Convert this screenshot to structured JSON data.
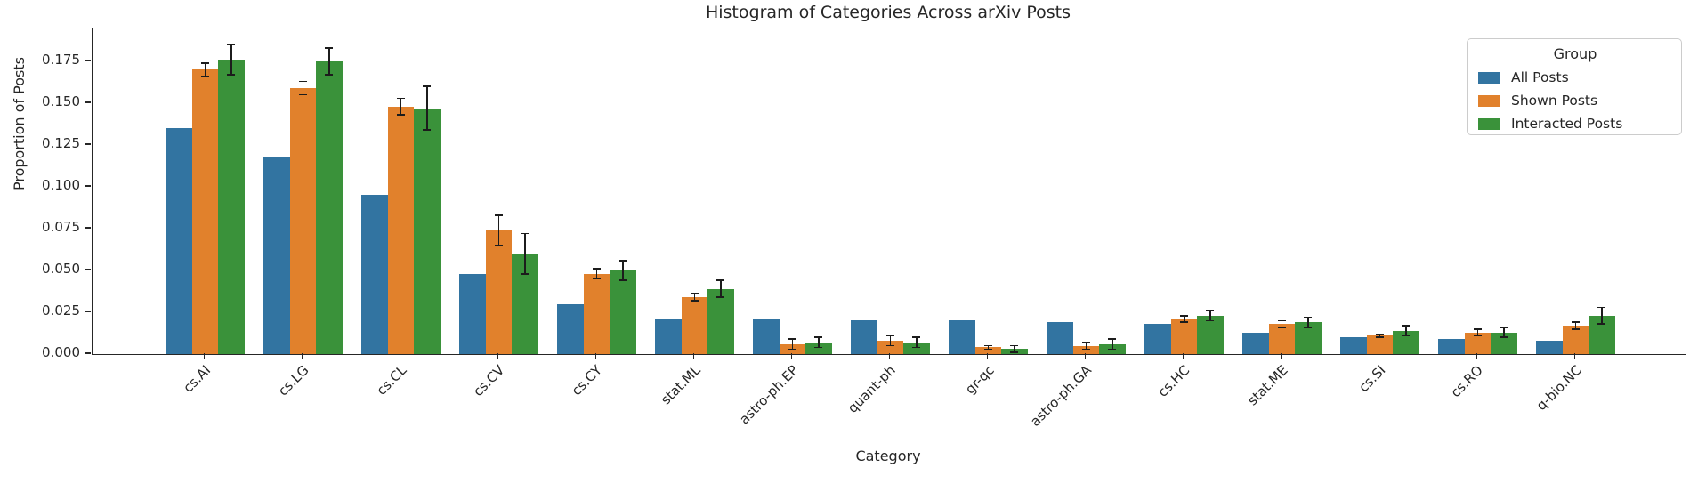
{
  "chart": {
    "title": "Histogram of Categories Across arXiv Posts",
    "xlabel": "Category",
    "ylabel": "Proportion of Posts",
    "legend_title": "Group"
  },
  "chart_data": {
    "type": "bar",
    "title": "Histogram of Categories Across arXiv Posts",
    "xlabel": "Category",
    "ylabel": "Proportion of Posts",
    "grid": false,
    "legend": {
      "title": "Group",
      "position": "upper right"
    },
    "ylim": [
      0,
      0.1947
    ],
    "yticks": [
      0.0,
      0.025,
      0.05,
      0.075,
      0.1,
      0.125,
      0.15,
      0.175
    ],
    "ytick_format_decimals": 3,
    "error_bar_color": "#1c1c1c",
    "categories": [
      "cs.AI",
      "cs.LG",
      "cs.CL",
      "cs.CV",
      "cs.CY",
      "stat.ML",
      "astro-ph.EP",
      "quant-ph",
      "gr-qc",
      "astro-ph.GA",
      "cs.HC",
      "stat.ME",
      "cs.SI",
      "cs.RO",
      "q-bio.NC"
    ],
    "series": [
      {
        "name": "All Posts",
        "color": "#3274a1",
        "values": [
          0.135,
          0.118,
          0.095,
          0.048,
          0.03,
          0.021,
          0.021,
          0.02,
          0.02,
          0.019,
          0.018,
          0.013,
          0.01,
          0.009,
          0.008
        ],
        "errors": [
          0,
          0,
          0,
          0,
          0,
          0,
          0,
          0,
          0,
          0,
          0,
          0,
          0,
          0,
          0
        ]
      },
      {
        "name": "Shown Posts",
        "color": "#e1812c",
        "values": [
          0.17,
          0.159,
          0.148,
          0.074,
          0.048,
          0.034,
          0.006,
          0.008,
          0.004,
          0.005,
          0.021,
          0.018,
          0.011,
          0.013,
          0.017
        ],
        "errors": [
          0.004,
          0.004,
          0.005,
          0.009,
          0.003,
          0.002,
          0.003,
          0.003,
          0.001,
          0.002,
          0.002,
          0.002,
          0.001,
          0.002,
          0.002
        ]
      },
      {
        "name": "Interacted Posts",
        "color": "#3a923a",
        "values": [
          0.176,
          0.175,
          0.147,
          0.06,
          0.05,
          0.039,
          0.007,
          0.007,
          0.003,
          0.006,
          0.023,
          0.019,
          0.014,
          0.013,
          0.023
        ],
        "errors": [
          0.009,
          0.008,
          0.013,
          0.012,
          0.006,
          0.005,
          0.003,
          0.003,
          0.002,
          0.003,
          0.003,
          0.003,
          0.003,
          0.003,
          0.005
        ]
      }
    ]
  }
}
